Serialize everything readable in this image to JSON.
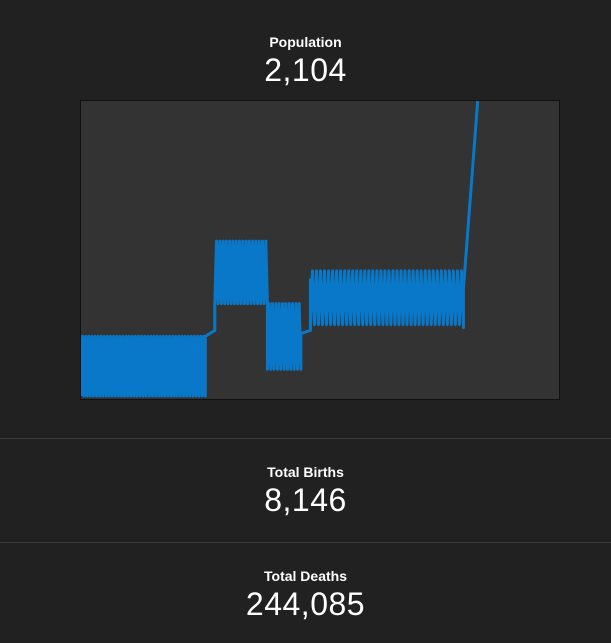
{
  "population": {
    "label": "Population",
    "value": "2,104"
  },
  "births": {
    "label": "Total Births",
    "value": "8,146"
  },
  "deaths": {
    "label": "Total Deaths",
    "value": "244,085"
  },
  "colors": {
    "background": "#212121",
    "chart_background": "#333333",
    "line": "#0a78c8",
    "divider": "#3a3a3a"
  },
  "chart_data": {
    "type": "line",
    "title": "",
    "xlabel": "",
    "ylabel": "",
    "grid": false,
    "legend": "none",
    "ylim": [
      0,
      100
    ],
    "series": [
      {
        "color": "#0a78c8",
        "segments": [
          {
            "x_start": 0,
            "x_end": 26,
            "low": 1,
            "high": 21,
            "cycles": 40
          },
          {
            "x_start": 26,
            "x_end": 28,
            "low": 1,
            "high": 21,
            "cycles": 0,
            "ramp_to_low": 23,
            "ramp_to_high": 32
          },
          {
            "x_start": 28,
            "x_end": 39,
            "low": 32,
            "high": 53,
            "cycles": 16
          },
          {
            "x_start": 39,
            "x_end": 46,
            "low": 10,
            "high": 32,
            "cycles": 10
          },
          {
            "x_start": 46,
            "x_end": 48,
            "low": 10,
            "high": 22,
            "cycles": 0,
            "ramp_to_low": 23,
            "ramp_to_high": 40
          },
          {
            "x_start": 48,
            "x_end": 80,
            "low": 25,
            "high": 43,
            "cycles": 38
          },
          {
            "x_start": 80,
            "x_end": 83,
            "low": 24,
            "high": 37,
            "cycles": 0,
            "ramp_to_low": 100,
            "ramp_to_high": 100
          }
        ]
      }
    ]
  }
}
